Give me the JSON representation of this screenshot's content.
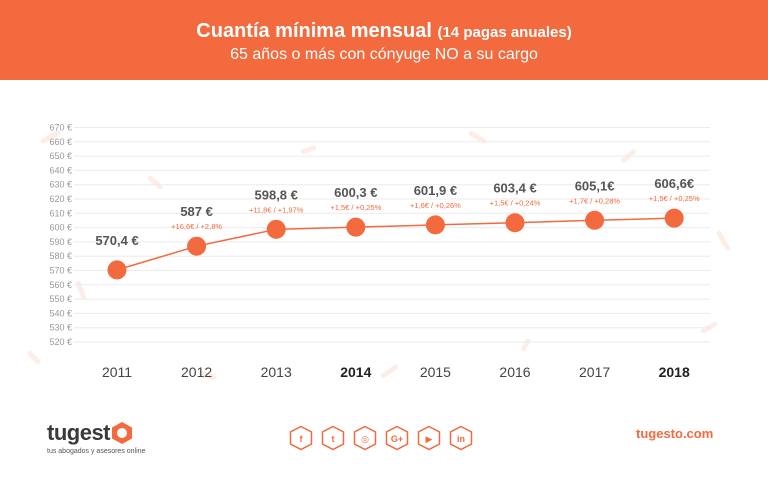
{
  "header": {
    "title": "Cuantía mínima mensual",
    "title_paren": "(14 pagas anuales)",
    "subtitle": "65 años o más con cónyuge NO a su cargo"
  },
  "chart_data": {
    "type": "line",
    "title": "Cuantía mínima mensual (14 pagas anuales)",
    "subtitle": "65 años o más con cónyuge NO a su cargo",
    "x": [
      "2011",
      "2012",
      "2013",
      "2014",
      "2015",
      "2016",
      "2017",
      "2018"
    ],
    "bold_x": [
      "2014",
      "2018"
    ],
    "values": [
      570.4,
      587,
      598.8,
      600.3,
      601.9,
      603.4,
      605.1,
      606.6
    ],
    "value_labels": [
      "570,4 €",
      "587 €",
      "598,8 €",
      "600,3 €",
      "601,9 €",
      "603,4 €",
      "605,1€",
      "606,6€"
    ],
    "change_labels": [
      "",
      "+16,6€ / +2,8%",
      "+11,8€ / +1,97%",
      "+1,5€ / +0,25%",
      "+1,6€ / +0,26%",
      "+1,5€ / +0,24%",
      "+1,7€ / +0,28%",
      "+1,5€ / +0,25%"
    ],
    "ylim": [
      520,
      670
    ],
    "yticks": [
      520,
      530,
      540,
      550,
      560,
      570,
      580,
      590,
      600,
      610,
      620,
      630,
      640,
      650,
      660,
      670
    ],
    "ytick_labels": [
      "520 €",
      "530 €",
      "540 €",
      "550 €",
      "560 €",
      "570 €",
      "580 €",
      "590 €",
      "600 €",
      "610 €",
      "620 €",
      "630 €",
      "640 €",
      "650 €",
      "660 €",
      "670 €"
    ],
    "grid": true,
    "color": "#f26a3d"
  },
  "footer": {
    "logo": "tugest",
    "tagline": "tus abogados y asesores online",
    "website": "tugesto.com",
    "social_icons": [
      "facebook-icon",
      "twitter-icon",
      "instagram-icon",
      "google-plus-icon",
      "youtube-icon",
      "linkedin-icon"
    ],
    "social_glyphs": [
      "f",
      "t",
      "◎",
      "G+",
      "▶",
      "in"
    ]
  }
}
